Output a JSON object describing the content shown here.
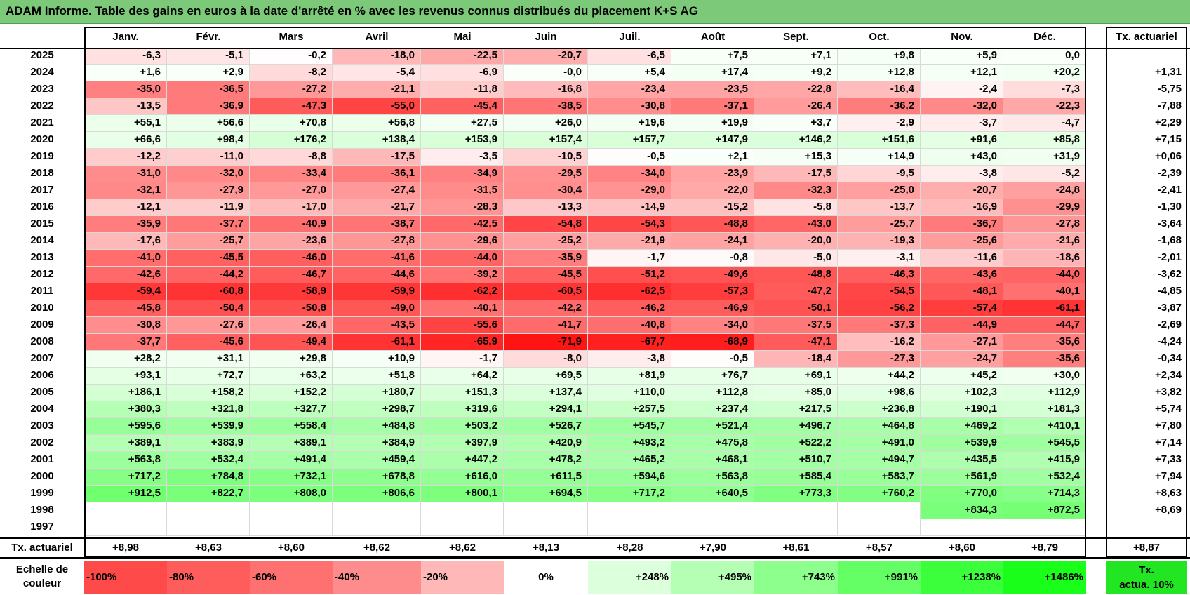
{
  "title": "ADAM Informe. Table des gains en euros à la date d'arrêté en % avec les revenus connus distribués du placement K+S AG",
  "colors": {
    "title_bg": "#7dc97a",
    "negative": "#ff1a1a",
    "positive": "#22ff22",
    "neutral": "#ffffff"
  },
  "chart_data": {
    "type": "heatmap",
    "months": [
      "Janv.",
      "Févr.",
      "Mars",
      "Avril",
      "Mai",
      "Juin",
      "Juil.",
      "Août",
      "Sept.",
      "Oct.",
      "Nov.",
      "Déc."
    ],
    "tx_header": "Tx. actuariel",
    "rows": [
      {
        "year": "2025",
        "values": [
          "-6,3",
          "-5,1",
          "-0,2",
          "-18,0",
          "-22,5",
          "-20,7",
          "-6,5",
          "+7,5",
          "+7,1",
          "+9,8",
          "+5,9",
          "0,0"
        ],
        "tx": ""
      },
      {
        "year": "2024",
        "values": [
          "+1,6",
          "+2,9",
          "-8,2",
          "-5,4",
          "-6,9",
          "-0,0",
          "+5,4",
          "+17,4",
          "+9,2",
          "+12,8",
          "+12,1",
          "+20,2"
        ],
        "tx": "+1,31"
      },
      {
        "year": "2023",
        "values": [
          "-35,0",
          "-36,5",
          "-27,2",
          "-21,1",
          "-11,8",
          "-16,8",
          "-23,4",
          "-23,5",
          "-22,8",
          "-16,4",
          "-2,4",
          "-7,3"
        ],
        "tx": "-5,75"
      },
      {
        "year": "2022",
        "values": [
          "-13,5",
          "-36,9",
          "-47,3",
          "-55,0",
          "-45,4",
          "-38,5",
          "-30,8",
          "-37,1",
          "-26,4",
          "-36,2",
          "-32,0",
          "-22,3"
        ],
        "tx": "-7,88"
      },
      {
        "year": "2021",
        "values": [
          "+55,1",
          "+56,6",
          "+70,8",
          "+56,8",
          "+27,5",
          "+26,0",
          "+19,6",
          "+19,9",
          "+3,7",
          "-2,9",
          "-3,7",
          "-4,7"
        ],
        "tx": "+2,29"
      },
      {
        "year": "2020",
        "values": [
          "+66,6",
          "+98,4",
          "+176,2",
          "+138,4",
          "+153,9",
          "+157,4",
          "+157,7",
          "+147,9",
          "+146,2",
          "+151,6",
          "+91,6",
          "+85,8"
        ],
        "tx": "+7,15"
      },
      {
        "year": "2019",
        "values": [
          "-12,2",
          "-11,0",
          "-8,8",
          "-17,5",
          "-3,5",
          "-10,5",
          "-0,5",
          "+2,1",
          "+15,3",
          "+14,9",
          "+43,0",
          "+31,9"
        ],
        "tx": "+0,06"
      },
      {
        "year": "2018",
        "values": [
          "-31,0",
          "-32,0",
          "-33,4",
          "-36,1",
          "-34,9",
          "-29,5",
          "-34,0",
          "-23,9",
          "-17,5",
          "-9,5",
          "-3,8",
          "-5,2"
        ],
        "tx": "-2,39"
      },
      {
        "year": "2017",
        "values": [
          "-32,1",
          "-27,9",
          "-27,0",
          "-27,4",
          "-31,5",
          "-30,4",
          "-29,0",
          "-22,0",
          "-32,3",
          "-25,0",
          "-20,7",
          "-24,8"
        ],
        "tx": "-2,41"
      },
      {
        "year": "2016",
        "values": [
          "-12,1",
          "-11,9",
          "-17,0",
          "-21,7",
          "-28,3",
          "-13,3",
          "-14,9",
          "-15,2",
          "-5,8",
          "-13,7",
          "-16,9",
          "-29,9"
        ],
        "tx": "-1,30"
      },
      {
        "year": "2015",
        "values": [
          "-35,9",
          "-37,7",
          "-40,9",
          "-38,7",
          "-42,5",
          "-54,8",
          "-54,3",
          "-48,8",
          "-43,0",
          "-25,7",
          "-36,7",
          "-27,8"
        ],
        "tx": "-3,64"
      },
      {
        "year": "2014",
        "values": [
          "-17,6",
          "-25,7",
          "-23,6",
          "-27,8",
          "-29,6",
          "-25,2",
          "-21,9",
          "-24,1",
          "-20,0",
          "-19,3",
          "-25,6",
          "-21,6"
        ],
        "tx": "-1,68"
      },
      {
        "year": "2013",
        "values": [
          "-41,0",
          "-45,5",
          "-46,0",
          "-41,6",
          "-44,0",
          "-35,9",
          "-1,7",
          "-0,8",
          "-5,0",
          "-3,1",
          "-11,6",
          "-18,6"
        ],
        "tx": "-2,01"
      },
      {
        "year": "2012",
        "values": [
          "-42,6",
          "-44,2",
          "-46,7",
          "-44,6",
          "-39,2",
          "-45,5",
          "-51,2",
          "-49,6",
          "-48,8",
          "-46,3",
          "-43,6",
          "-44,0"
        ],
        "tx": "-3,62"
      },
      {
        "year": "2011",
        "values": [
          "-59,4",
          "-60,8",
          "-58,9",
          "-59,9",
          "-62,2",
          "-60,5",
          "-62,5",
          "-57,3",
          "-47,2",
          "-54,5",
          "-48,1",
          "-40,1"
        ],
        "tx": "-4,85"
      },
      {
        "year": "2010",
        "values": [
          "-45,8",
          "-50,4",
          "-50,8",
          "-49,0",
          "-40,1",
          "-42,2",
          "-46,2",
          "-46,9",
          "-50,1",
          "-56,2",
          "-57,4",
          "-61,1"
        ],
        "tx": "-3,87"
      },
      {
        "year": "2009",
        "values": [
          "-30,8",
          "-27,6",
          "-26,4",
          "-43,5",
          "-55,6",
          "-41,7",
          "-40,8",
          "-34,0",
          "-37,5",
          "-37,3",
          "-44,9",
          "-44,7"
        ],
        "tx": "-2,69"
      },
      {
        "year": "2008",
        "values": [
          "-37,7",
          "-45,6",
          "-49,4",
          "-61,1",
          "-65,9",
          "-71,9",
          "-67,7",
          "-68,9",
          "-47,1",
          "-16,2",
          "-27,1",
          "-35,6"
        ],
        "tx": "-4,24"
      },
      {
        "year": "2007",
        "values": [
          "+28,2",
          "+31,1",
          "+29,8",
          "+10,9",
          "-1,7",
          "-8,0",
          "-3,8",
          "-0,5",
          "-18,4",
          "-27,3",
          "-24,7",
          "-35,6"
        ],
        "tx": "-0,34"
      },
      {
        "year": "2006",
        "values": [
          "+93,1",
          "+72,7",
          "+63,2",
          "+51,8",
          "+64,2",
          "+69,5",
          "+81,9",
          "+76,7",
          "+69,1",
          "+44,2",
          "+45,2",
          "+30,0"
        ],
        "tx": "+2,34"
      },
      {
        "year": "2005",
        "values": [
          "+186,1",
          "+158,2",
          "+152,2",
          "+180,7",
          "+151,3",
          "+137,4",
          "+110,0",
          "+112,8",
          "+85,0",
          "+98,6",
          "+102,3",
          "+112,9"
        ],
        "tx": "+3,82"
      },
      {
        "year": "2004",
        "values": [
          "+380,3",
          "+321,8",
          "+327,7",
          "+298,7",
          "+319,6",
          "+294,1",
          "+257,5",
          "+237,4",
          "+217,5",
          "+236,8",
          "+190,1",
          "+181,3"
        ],
        "tx": "+5,74"
      },
      {
        "year": "2003",
        "values": [
          "+595,6",
          "+539,9",
          "+558,4",
          "+484,8",
          "+503,2",
          "+526,7",
          "+545,7",
          "+521,4",
          "+496,7",
          "+464,8",
          "+469,2",
          "+410,1"
        ],
        "tx": "+7,80"
      },
      {
        "year": "2002",
        "values": [
          "+389,1",
          "+383,9",
          "+389,1",
          "+384,9",
          "+397,9",
          "+420,9",
          "+493,2",
          "+475,8",
          "+522,2",
          "+491,0",
          "+539,9",
          "+545,5"
        ],
        "tx": "+7,14"
      },
      {
        "year": "2001",
        "values": [
          "+563,8",
          "+532,4",
          "+491,4",
          "+459,4",
          "+447,2",
          "+478,2",
          "+465,2",
          "+468,1",
          "+510,7",
          "+494,7",
          "+435,5",
          "+415,9"
        ],
        "tx": "+7,33"
      },
      {
        "year": "2000",
        "values": [
          "+717,2",
          "+784,8",
          "+732,1",
          "+678,8",
          "+616,0",
          "+611,5",
          "+594,6",
          "+563,8",
          "+585,4",
          "+583,7",
          "+561,9",
          "+532,4"
        ],
        "tx": "+7,94"
      },
      {
        "year": "1999",
        "values": [
          "+912,5",
          "+822,7",
          "+808,0",
          "+806,6",
          "+800,1",
          "+694,5",
          "+717,2",
          "+640,5",
          "+773,3",
          "+760,2",
          "+770,0",
          "+714,3"
        ],
        "tx": "+8,63"
      },
      {
        "year": "1998",
        "values": [
          "",
          "",
          "",
          "",
          "",
          "",
          "",
          "",
          "",
          "",
          "+834,3",
          "+872,5"
        ],
        "tx": "+8,69"
      },
      {
        "year": "1997",
        "values": [
          "",
          "",
          "",
          "",
          "",
          "",
          "",
          "",
          "",
          "",
          "",
          ""
        ],
        "tx": ""
      }
    ],
    "footer": {
      "label": "Tx. actuariel",
      "values": [
        "+8,98",
        "+8,63",
        "+8,60",
        "+8,62",
        "+8,62",
        "+8,13",
        "+8,28",
        "+7,90",
        "+8,61",
        "+8,57",
        "+8,60",
        "+8,79"
      ],
      "tx": "+8,87"
    },
    "scale": {
      "label_line1": "Echelle de",
      "label_line2": "couleur",
      "stops": [
        "-100%",
        "-80%",
        "-60%",
        "-40%",
        "-20%",
        "0%",
        "+248%",
        "+495%",
        "+743%",
        "+991%",
        "+1238%",
        "+1486%"
      ],
      "stop_colors": [
        "#ff4a4a",
        "#ff5c5c",
        "#ff7070",
        "#ff8c8c",
        "#ffb8b8",
        "#ffffff",
        "#dcffdc",
        "#b4ffb4",
        "#8cff8c",
        "#64ff64",
        "#3cff3c",
        "#1aff1a"
      ],
      "tx_line1": "Tx.",
      "tx_line2": "actua. 10%"
    }
  }
}
